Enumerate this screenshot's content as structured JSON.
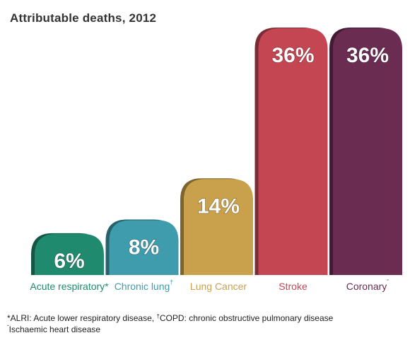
{
  "colors": {
    "acute": "#1f8a6e",
    "chronic": "#3f9cac",
    "lung": "#c9a14c",
    "stroke": "#c44653",
    "coronary": "#6b2c52"
  },
  "chart_data": {
    "type": "bar",
    "title": "Attributable deaths, 2012",
    "xlabel": "",
    "ylabel": "",
    "ylim": [
      0,
      40
    ],
    "grid": false,
    "categories": [
      "Acute respiratory*",
      "Chronic lung",
      "Lung Cancer",
      "Stroke",
      "Coronary"
    ],
    "category_marks": [
      "",
      "†",
      "",
      "",
      "ˇ"
    ],
    "values": [
      6,
      8,
      14,
      36,
      36
    ],
    "value_labels": [
      "6%",
      "8%",
      "14%",
      "36%",
      "36%"
    ],
    "footnotes": [
      {
        "pre": "*ALRI: Acute lower respiratory disease, ",
        "mark": "†",
        "post": "COPD: chronic obstructive pulmonary disease"
      },
      {
        "pre": "",
        "mark": "ˇ",
        "post": "Ischaemic heart disease"
      }
    ]
  }
}
